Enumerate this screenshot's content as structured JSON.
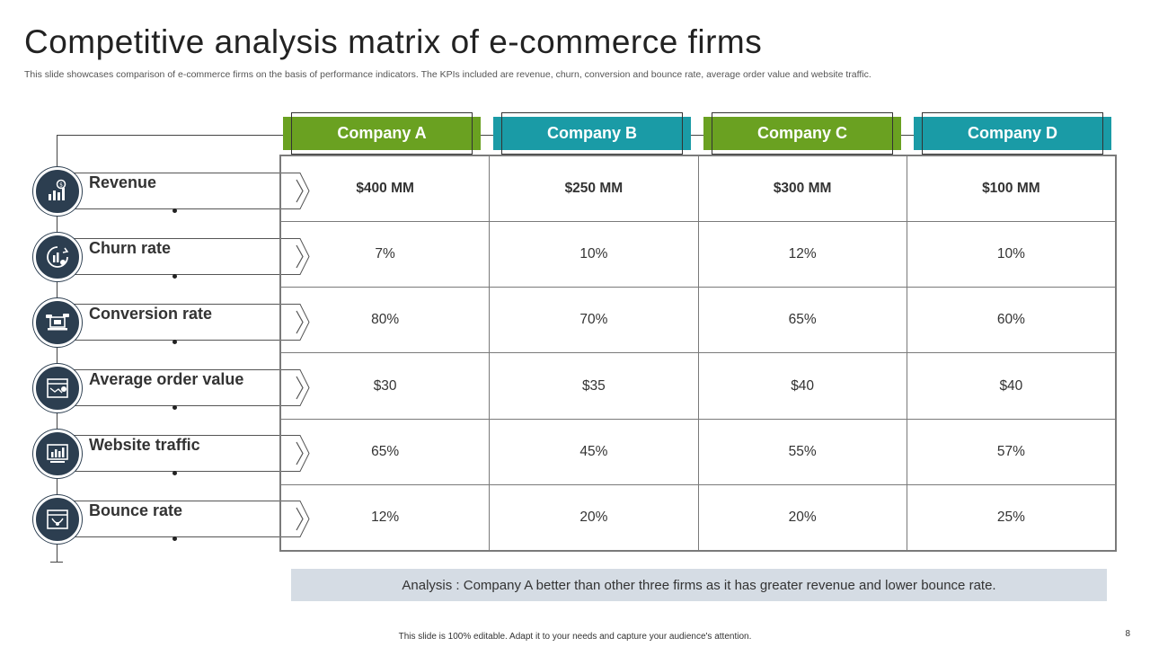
{
  "slide": {
    "title": "Competitive analysis matrix of e-commerce firms",
    "subtitle": "This slide showcases comparison of e-commerce firms on the basis of performance indicators. The KPIs included are revenue, churn, conversion and bounce rate, average order value and website traffic.",
    "footer": "This slide is 100% editable. Adapt it to your needs and capture your audience's attention.",
    "page_number": "8",
    "analysis": "Analysis : Company A better than other three firms as it has greater revenue and lower bounce rate."
  },
  "colors": {
    "green": "#6aa121",
    "teal": "#1a9ba6",
    "navy": "#2c3e50"
  },
  "companies": [
    {
      "name": "Company A",
      "color": "#6aa121"
    },
    {
      "name": "Company B",
      "color": "#1a9ba6"
    },
    {
      "name": "Company C",
      "color": "#6aa121"
    },
    {
      "name": "Company D",
      "color": "#1a9ba6"
    }
  ],
  "kpis": [
    {
      "label": "Revenue",
      "icon": "revenue-chart-icon",
      "values": [
        "$400 MM",
        "$250 MM",
        "$300 MM",
        "$100 MM"
      ]
    },
    {
      "label": "Churn rate",
      "icon": "churn-icon",
      "values": [
        "7%",
        "10%",
        "12%",
        "10%"
      ]
    },
    {
      "label": "Conversion rate",
      "icon": "laptop-conversion-icon",
      "values": [
        "80%",
        "70%",
        "65%",
        "60%"
      ]
    },
    {
      "label": "Average order value",
      "icon": "order-value-icon",
      "values": [
        "$30",
        "$35",
        "$40",
        "$40"
      ]
    },
    {
      "label": "Website traffic",
      "icon": "monitor-traffic-icon",
      "values": [
        "65%",
        "45%",
        "55%",
        "57%"
      ]
    },
    {
      "label": "Bounce rate",
      "icon": "bounce-icon",
      "values": [
        "12%",
        "20%",
        "20%",
        "25%"
      ]
    }
  ]
}
